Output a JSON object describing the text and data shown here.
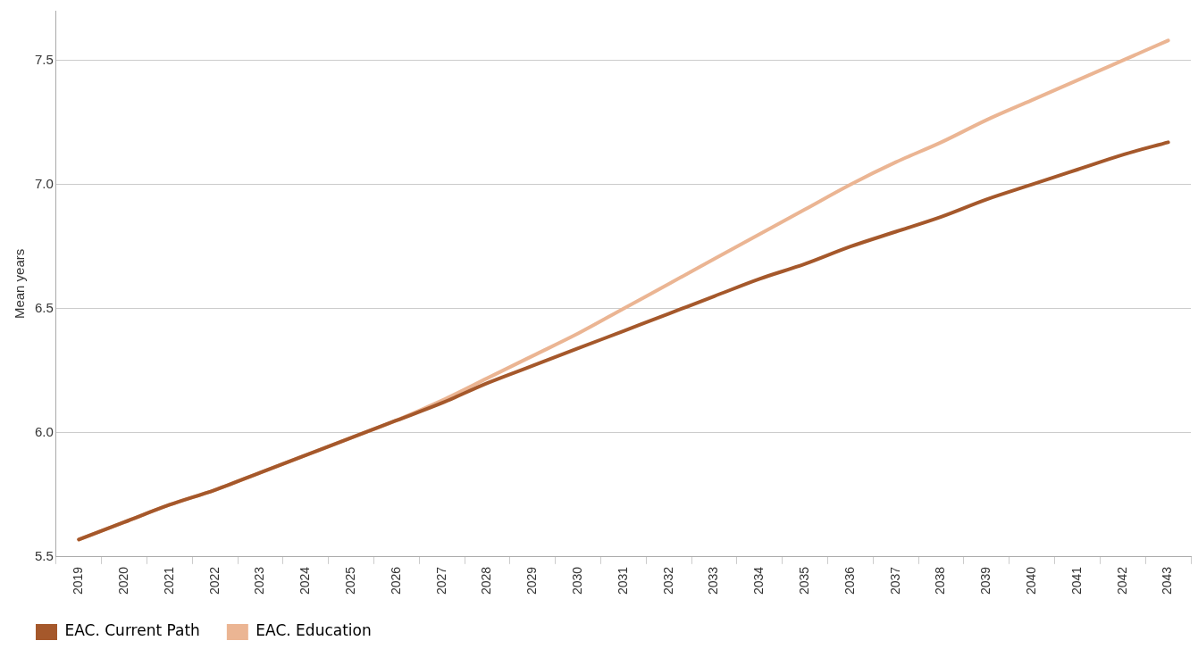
{
  "chart_data": {
    "type": "line",
    "ylabel": "Mean years",
    "categories": [
      "2019",
      "2020",
      "2021",
      "2022",
      "2023",
      "2024",
      "2025",
      "2026",
      "2027",
      "2028",
      "2029",
      "2030",
      "2031",
      "2032",
      "2033",
      "2034",
      "2035",
      "2036",
      "2037",
      "2038",
      "2039",
      "2040",
      "2041",
      "2042",
      "2043"
    ],
    "series": [
      {
        "name": "EAC. Current Path",
        "color": "#a5582b",
        "values": [
          5.57,
          5.64,
          5.71,
          5.77,
          5.84,
          5.91,
          5.98,
          6.05,
          6.12,
          6.2,
          6.27,
          6.34,
          6.41,
          6.48,
          6.55,
          6.62,
          6.68,
          6.75,
          6.81,
          6.87,
          6.94,
          7.0,
          7.06,
          7.12,
          7.17
        ]
      },
      {
        "name": "EAC. Education",
        "color": "#ebb593",
        "values": [
          5.57,
          5.64,
          5.71,
          5.77,
          5.84,
          5.91,
          5.98,
          6.05,
          6.13,
          6.22,
          6.31,
          6.4,
          6.5,
          6.6,
          6.7,
          6.8,
          6.9,
          7.0,
          7.09,
          7.17,
          7.26,
          7.34,
          7.42,
          7.5,
          7.58
        ]
      }
    ],
    "ylim": [
      5.5,
      7.7
    ],
    "yticks": [
      {
        "value": 5.5,
        "label": "5.5"
      },
      {
        "value": 6,
        "label": "6.0"
      },
      {
        "value": 6.5,
        "label": "6.5"
      },
      {
        "value": 7,
        "label": "7.0"
      },
      {
        "value": 7.5,
        "label": "7.5"
      }
    ],
    "grid": "y",
    "legend": "bottom left",
    "marker": "none",
    "line_style": "solid"
  }
}
